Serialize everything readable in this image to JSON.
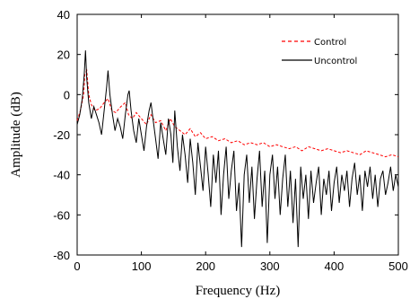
{
  "chart_data": {
    "type": "line",
    "title": "",
    "xlabel": "Frequency (Hz)",
    "ylabel": "Amplitude (dB)",
    "xlim": [
      0,
      500
    ],
    "ylim": [
      -80,
      40
    ],
    "xticks": [
      0,
      100,
      200,
      300,
      400,
      500
    ],
    "yticks": [
      -80,
      -60,
      -40,
      -20,
      0,
      20,
      40
    ],
    "grid": false,
    "legend_position": "top-right",
    "series": [
      {
        "name": "Control",
        "color": "#ff0000",
        "style": "dashed",
        "x": [
          0,
          5,
          10,
          12,
          15,
          18,
          22,
          28,
          35,
          42,
          48,
          54,
          60,
          68,
          75,
          80,
          86,
          92,
          100,
          108,
          115,
          122,
          130,
          138,
          145,
          152,
          160,
          168,
          176,
          184,
          192,
          200,
          210,
          220,
          230,
          240,
          250,
          260,
          270,
          280,
          290,
          300,
          310,
          320,
          330,
          340,
          350,
          360,
          370,
          380,
          390,
          400,
          410,
          420,
          430,
          440,
          450,
          460,
          470,
          480,
          490,
          500
        ],
        "y": [
          -13,
          -8,
          0,
          10,
          12,
          0,
          -5,
          -8,
          -7,
          -4,
          -2,
          -8,
          -9,
          -6,
          -4,
          -10,
          -12,
          -9,
          -12,
          -15,
          -10,
          -14,
          -13,
          -18,
          -12,
          -16,
          -18,
          -20,
          -17,
          -21,
          -19,
          -22,
          -21,
          -23,
          -22,
          -24,
          -23,
          -25,
          -24,
          -25,
          -24,
          -26,
          -25,
          -26,
          -27,
          -26,
          -28,
          -26,
          -27,
          -28,
          -27,
          -28,
          -29,
          -28,
          -29,
          -30,
          -28,
          -29,
          -30,
          -31,
          -30,
          -31
        ]
      },
      {
        "name": "Uncontrol",
        "color": "#000000",
        "style": "solid",
        "x": [
          0,
          4,
          8,
          11,
          13,
          15,
          18,
          22,
          26,
          30,
          34,
          38,
          42,
          46,
          48,
          51,
          55,
          59,
          63,
          67,
          71,
          75,
          79,
          81,
          84,
          88,
          92,
          96,
          100,
          104,
          108,
          112,
          115,
          118,
          122,
          126,
          130,
          134,
          138,
          142,
          146,
          149,
          152,
          156,
          160,
          164,
          168,
          172,
          176,
          180,
          184,
          188,
          192,
          196,
          200,
          204,
          208,
          212,
          216,
          220,
          224,
          228,
          232,
          236,
          240,
          244,
          248,
          252,
          256,
          260,
          264,
          268,
          272,
          276,
          280,
          284,
          288,
          292,
          296,
          300,
          304,
          308,
          312,
          316,
          320,
          324,
          328,
          332,
          336,
          340,
          344,
          348,
          352,
          356,
          360,
          364,
          368,
          372,
          376,
          380,
          384,
          388,
          392,
          396,
          400,
          404,
          408,
          412,
          416,
          420,
          424,
          428,
          432,
          436,
          440,
          444,
          448,
          452,
          456,
          460,
          464,
          468,
          472,
          476,
          480,
          484,
          488,
          492,
          496,
          500
        ],
        "y": [
          -15,
          -10,
          -2,
          10,
          22,
          8,
          -4,
          -12,
          -6,
          -10,
          -14,
          -20,
          -8,
          4,
          12,
          0,
          -10,
          -18,
          -12,
          -16,
          -22,
          -10,
          0,
          2,
          -8,
          -18,
          -24,
          -12,
          -20,
          -28,
          -16,
          -8,
          -4,
          -12,
          -22,
          -32,
          -14,
          -22,
          -30,
          -12,
          -20,
          -34,
          -8,
          -26,
          -38,
          -20,
          -30,
          -44,
          -22,
          -34,
          -50,
          -24,
          -36,
          -48,
          -26,
          -40,
          -56,
          -30,
          -44,
          -28,
          -60,
          -40,
          -26,
          -52,
          -38,
          -28,
          -58,
          -44,
          -76,
          -40,
          -30,
          -54,
          -36,
          -62,
          -42,
          -28,
          -56,
          -38,
          -74,
          -40,
          -30,
          -52,
          -36,
          -60,
          -42,
          -30,
          -56,
          -38,
          -64,
          -42,
          -76,
          -36,
          -52,
          -40,
          -62,
          -38,
          -54,
          -44,
          -36,
          -60,
          -42,
          -50,
          -38,
          -58,
          -44,
          -36,
          -54,
          -40,
          -48,
          -38,
          -56,
          -42,
          -34,
          -50,
          -40,
          -58,
          -38,
          -46,
          -36,
          -52,
          -40,
          -56,
          -42,
          -38,
          -50,
          -44,
          -36,
          -48,
          -40,
          -46
        ]
      }
    ]
  }
}
